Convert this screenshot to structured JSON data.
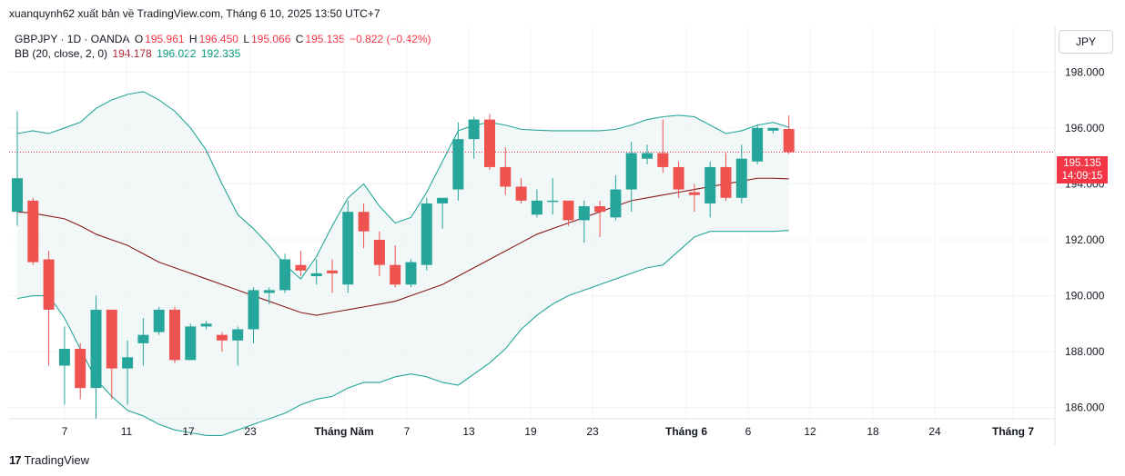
{
  "top_caption": "xuanquynh62 xuất bản về TradingView.com, Tháng 6 10, 2025 13:50 UTC+7",
  "currency_button": "JPY",
  "header": {
    "symbol": "GBPJPY · 1D · OANDA",
    "o_label": "O",
    "o_value": "195.961",
    "h_label": "H",
    "h_value": "196.450",
    "l_label": "L",
    "l_value": "195.066",
    "c_label": "C",
    "c_value": "195.135",
    "change": "−0.822 (−0.42%)"
  },
  "bb_header": {
    "label": "BB (20, close, 2, 0)",
    "basis": "194.178",
    "upper": "196.022",
    "lower": "192.335"
  },
  "price_tag": {
    "price": "195.135",
    "countdown": "14:09:15"
  },
  "footer_brand": "TradingView",
  "colors": {
    "up": "#26a69a",
    "down": "#ef5350",
    "basis": "#8b1a1a",
    "band": "#26a69a",
    "band_fill": "#e8f4f2"
  },
  "chart_data": {
    "type": "candlestick",
    "title": "GBPJPY · 1D · OANDA",
    "ylim": [
      185.6,
      199.6
    ],
    "y_ticks": [
      "186.000",
      "188.000",
      "190.000",
      "192.000",
      "194.000",
      "196.000",
      "198.000"
    ],
    "x_ticks": [
      "7",
      "11",
      "17",
      "23",
      "Tháng Năm",
      "7",
      "13",
      "19",
      "23",
      "Tháng 6",
      "6",
      "12",
      "18",
      "24",
      "Tháng 7"
    ],
    "last_price": 195.135,
    "candles": [
      {
        "o": 193.0,
        "h": 196.6,
        "l": 192.5,
        "c": 194.2
      },
      {
        "o": 193.4,
        "h": 193.5,
        "l": 191.1,
        "c": 191.2
      },
      {
        "o": 191.3,
        "h": 191.6,
        "l": 187.5,
        "c": 189.5
      },
      {
        "o": 187.5,
        "h": 188.9,
        "l": 186.1,
        "c": 188.1
      },
      {
        "o": 188.1,
        "h": 188.3,
        "l": 186.3,
        "c": 186.7
      },
      {
        "o": 186.7,
        "h": 190.0,
        "l": 185.6,
        "c": 189.5
      },
      {
        "o": 189.5,
        "h": 189.5,
        "l": 186.3,
        "c": 187.4
      },
      {
        "o": 187.4,
        "h": 188.4,
        "l": 186.1,
        "c": 187.8
      },
      {
        "o": 188.3,
        "h": 189.2,
        "l": 187.5,
        "c": 188.6
      },
      {
        "o": 188.7,
        "h": 189.6,
        "l": 188.6,
        "c": 189.5
      },
      {
        "o": 189.5,
        "h": 189.6,
        "l": 187.6,
        "c": 187.7
      },
      {
        "o": 187.7,
        "h": 189.0,
        "l": 187.7,
        "c": 188.9
      },
      {
        "o": 188.9,
        "h": 189.1,
        "l": 188.8,
        "c": 189.0
      },
      {
        "o": 188.6,
        "h": 188.7,
        "l": 188.0,
        "c": 188.4
      },
      {
        "o": 188.4,
        "h": 188.9,
        "l": 187.5,
        "c": 188.8
      },
      {
        "o": 188.8,
        "h": 190.3,
        "l": 188.3,
        "c": 190.2
      },
      {
        "o": 190.1,
        "h": 190.3,
        "l": 189.7,
        "c": 190.2
      },
      {
        "o": 190.2,
        "h": 191.5,
        "l": 190.1,
        "c": 191.3
      },
      {
        "o": 191.1,
        "h": 191.6,
        "l": 190.7,
        "c": 190.9
      },
      {
        "o": 190.7,
        "h": 191.3,
        "l": 190.4,
        "c": 190.8
      },
      {
        "o": 190.9,
        "h": 191.3,
        "l": 190.1,
        "c": 190.8
      },
      {
        "o": 190.4,
        "h": 193.4,
        "l": 190.1,
        "c": 193.0
      },
      {
        "o": 193.0,
        "h": 193.3,
        "l": 191.7,
        "c": 192.3
      },
      {
        "o": 192.0,
        "h": 192.3,
        "l": 190.7,
        "c": 191.1
      },
      {
        "o": 191.1,
        "h": 191.8,
        "l": 190.3,
        "c": 190.4
      },
      {
        "o": 190.4,
        "h": 191.3,
        "l": 190.3,
        "c": 191.2
      },
      {
        "o": 191.1,
        "h": 193.5,
        "l": 190.9,
        "c": 193.3
      },
      {
        "o": 193.3,
        "h": 193.4,
        "l": 192.4,
        "c": 193.5
      },
      {
        "o": 193.8,
        "h": 196.2,
        "l": 193.4,
        "c": 195.6
      },
      {
        "o": 195.6,
        "h": 196.4,
        "l": 194.9,
        "c": 196.3
      },
      {
        "o": 196.3,
        "h": 196.5,
        "l": 194.5,
        "c": 194.6
      },
      {
        "o": 194.6,
        "h": 195.3,
        "l": 193.6,
        "c": 193.9
      },
      {
        "o": 193.9,
        "h": 194.2,
        "l": 193.3,
        "c": 193.4
      },
      {
        "o": 192.9,
        "h": 193.8,
        "l": 192.8,
        "c": 193.4
      },
      {
        "o": 193.4,
        "h": 194.2,
        "l": 192.9,
        "c": 193.4
      },
      {
        "o": 193.4,
        "h": 193.4,
        "l": 192.5,
        "c": 192.7
      },
      {
        "o": 192.7,
        "h": 193.4,
        "l": 191.9,
        "c": 193.2
      },
      {
        "o": 193.2,
        "h": 193.4,
        "l": 192.1,
        "c": 193.0
      },
      {
        "o": 192.8,
        "h": 194.3,
        "l": 192.7,
        "c": 193.8
      },
      {
        "o": 193.8,
        "h": 195.5,
        "l": 193.0,
        "c": 195.1
      },
      {
        "o": 194.9,
        "h": 195.4,
        "l": 194.7,
        "c": 195.1
      },
      {
        "o": 195.1,
        "h": 196.3,
        "l": 194.4,
        "c": 194.6
      },
      {
        "o": 194.6,
        "h": 194.8,
        "l": 193.5,
        "c": 193.8
      },
      {
        "o": 193.7,
        "h": 194.0,
        "l": 193.0,
        "c": 193.6
      },
      {
        "o": 193.3,
        "h": 194.8,
        "l": 192.8,
        "c": 194.6
      },
      {
        "o": 194.6,
        "h": 195.1,
        "l": 193.4,
        "c": 193.5
      },
      {
        "o": 193.5,
        "h": 195.4,
        "l": 193.3,
        "c": 194.9
      },
      {
        "o": 194.8,
        "h": 196.1,
        "l": 194.7,
        "c": 196.0
      },
      {
        "o": 195.9,
        "h": 196.0,
        "l": 195.8,
        "c": 196.0
      },
      {
        "o": 195.961,
        "h": 196.45,
        "l": 195.066,
        "c": 195.135
      }
    ],
    "series": [
      {
        "name": "BB basis",
        "values": [
          193.0,
          192.95,
          192.85,
          192.75,
          192.5,
          192.2,
          192.0,
          191.8,
          191.5,
          191.2,
          191.0,
          190.8,
          190.6,
          190.4,
          190.2,
          190.0,
          189.8,
          189.6,
          189.4,
          189.3,
          189.4,
          189.5,
          189.6,
          189.7,
          189.8,
          190.0,
          190.2,
          190.4,
          190.7,
          191.0,
          191.3,
          191.6,
          191.9,
          192.2,
          192.4,
          192.6,
          192.8,
          193.0,
          193.2,
          193.4,
          193.5,
          193.6,
          193.7,
          193.8,
          193.9,
          194.0,
          194.1,
          194.2,
          194.2,
          194.178
        ]
      },
      {
        "name": "BB upper",
        "values": [
          195.8,
          195.9,
          195.8,
          196.0,
          196.2,
          196.7,
          197.0,
          197.2,
          197.3,
          197.0,
          196.6,
          196.0,
          195.2,
          194.0,
          192.9,
          192.4,
          191.8,
          191.1,
          190.6,
          191.4,
          192.5,
          193.5,
          194.0,
          193.2,
          192.6,
          192.8,
          193.7,
          194.8,
          195.9,
          196.1,
          196.2,
          196.1,
          195.95,
          195.92,
          195.9,
          195.9,
          195.9,
          195.9,
          195.95,
          196.1,
          196.3,
          196.4,
          196.45,
          196.4,
          196.1,
          195.8,
          195.9,
          196.1,
          196.2,
          196.022
        ]
      },
      {
        "name": "BB lower",
        "values": [
          189.9,
          190.0,
          190.0,
          189.2,
          188.1,
          187.0,
          186.4,
          185.9,
          185.7,
          185.4,
          185.2,
          185.1,
          185.0,
          185.0,
          185.2,
          185.4,
          185.6,
          185.8,
          186.1,
          186.3,
          186.4,
          186.7,
          186.9,
          186.9,
          187.1,
          187.2,
          187.1,
          186.9,
          186.8,
          187.2,
          187.6,
          188.1,
          188.8,
          189.3,
          189.7,
          190.0,
          190.2,
          190.4,
          190.6,
          190.8,
          191.0,
          191.1,
          191.6,
          192.1,
          192.3,
          192.3,
          192.3,
          192.3,
          192.3,
          192.335
        ]
      }
    ]
  }
}
